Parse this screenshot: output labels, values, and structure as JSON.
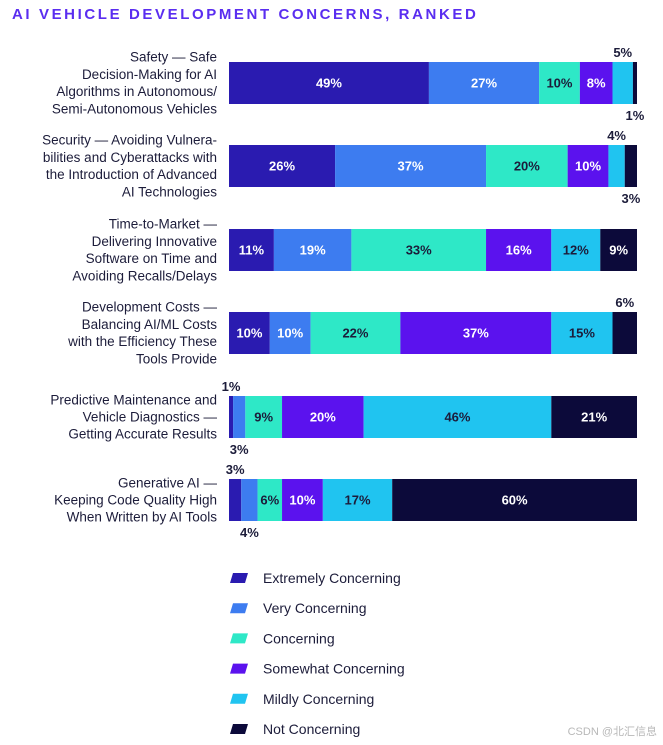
{
  "chart_data": {
    "type": "bar",
    "orientation": "horizontal",
    "stacked": true,
    "title": "AI VEHICLE DEVELOPMENT CONCERNS, RANKED",
    "categories": [
      [
        "Safety — Safe",
        "Decision-Making for AI",
        "Algorithms in Autonomous/",
        "Semi-Autonomous Vehicles"
      ],
      [
        "Security — Avoiding Vulnera-",
        "bilities and Cyberattacks with",
        "the Introduction of Advanced",
        "AI Technologies"
      ],
      [
        "Time-to-Market —",
        "Delivering Innovative",
        "Software on Time and",
        "Avoiding Recalls/Delays"
      ],
      [
        "Development Costs —",
        "Balancing AI/ML Costs",
        "with the Efficiency These",
        "Tools Provide"
      ],
      [
        "Predictive Maintenance and",
        "Vehicle Diagnostics —",
        "Getting Accurate Results"
      ],
      [
        "Generative AI —",
        "Keeping Code Quality High",
        "When Written by AI Tools"
      ]
    ],
    "series": [
      {
        "name": "Extremely Concerning",
        "color": "#2a1bb0",
        "values": [
          49,
          26,
          11,
          10,
          1,
          3
        ]
      },
      {
        "name": "Very Concerning",
        "color": "#3d7cf0",
        "values": [
          27,
          37,
          19,
          10,
          3,
          4
        ]
      },
      {
        "name": "Concerning",
        "color": "#2ee8c7",
        "values": [
          10,
          20,
          33,
          22,
          9,
          6
        ]
      },
      {
        "name": "Somewhat Concerning",
        "color": "#5b12ee",
        "values": [
          8,
          10,
          16,
          37,
          20,
          10
        ]
      },
      {
        "name": "Mildly Concerning",
        "color": "#20c4f0",
        "values": [
          5,
          4,
          12,
          15,
          46,
          17
        ]
      },
      {
        "name": "Not Concerning",
        "color": "#0c0a3a",
        "values": [
          1,
          3,
          9,
          6,
          21,
          60
        ]
      }
    ],
    "value_labels": [
      [
        "49%",
        "27%",
        "10%",
        "8%",
        "5%",
        "1%"
      ],
      [
        "26%",
        "37%",
        "20%",
        "10%",
        "4%",
        "3%"
      ],
      [
        "11%",
        "19%",
        "33%",
        "16%",
        "12%",
        "9%"
      ],
      [
        "10%",
        "10%",
        "22%",
        "37%",
        "15%",
        "6%"
      ],
      [
        "1%",
        "3%",
        "9%",
        "20%",
        "46%",
        "21%"
      ],
      [
        "3%",
        "4%",
        "6%",
        "10%",
        "17%",
        "60%"
      ]
    ],
    "xlim": [
      0,
      100
    ],
    "legend_position": "bottom-left"
  },
  "watermark": "CSDN @北汇信息"
}
